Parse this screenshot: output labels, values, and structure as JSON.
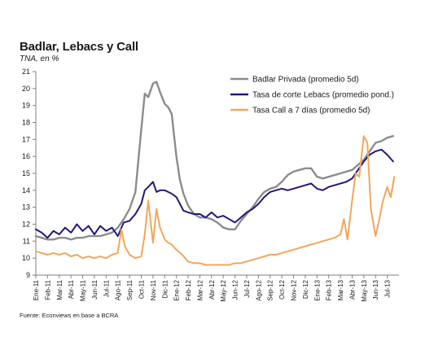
{
  "chart_data": {
    "type": "line",
    "title": "Badlar, Lebacs y Call",
    "subtitle": "TNA, en %",
    "source": "Fuente: Econviews en base a BCRA",
    "xlabel": "",
    "ylabel": "",
    "ylim": [
      9,
      21
    ],
    "yticks": [
      9,
      10,
      11,
      12,
      13,
      14,
      15,
      16,
      17,
      18,
      19,
      20,
      21
    ],
    "xlim": [
      0,
      31
    ],
    "xticks": [
      "Ene-11",
      "Feb-11",
      "Mar-11",
      "Abr-11",
      "May-11",
      "Jun-11",
      "Jul-11",
      "Ago-11",
      "Sep-11",
      "Oct-11",
      "Nov-11",
      "Dic-11",
      "Ene-12",
      "Feb-12",
      "Mar-12",
      "Abr-12",
      "May-12",
      "Jun-12",
      "Jul-12",
      "Ago-12",
      "Sep-12",
      "Oct-12",
      "Nov-12",
      "Dic-12",
      "Ene-13",
      "Feb-13",
      "Mar-13",
      "Abr-13",
      "May-13",
      "Jun-13",
      "Jul-13"
    ],
    "grid": false,
    "legend_position": "top-right",
    "series": [
      {
        "name": "Badlar Privada (promedio 5d)",
        "color": "#8c8c8c",
        "x": [
          0,
          0.5,
          1,
          1.5,
          2,
          2.5,
          3,
          3.5,
          4,
          4.5,
          5,
          5.5,
          6,
          6.5,
          7,
          7.5,
          8,
          8.5,
          9,
          9.3,
          9.6,
          10,
          10.3,
          10.6,
          11,
          11.3,
          11.6,
          12,
          12.3,
          12.6,
          13,
          13.5,
          14,
          14.5,
          15,
          15.5,
          16,
          16.5,
          17,
          17.5,
          18,
          18.5,
          19,
          19.5,
          20,
          20.5,
          21,
          21.5,
          22,
          22.5,
          23,
          23.5,
          24,
          24.5,
          25,
          25.5,
          26,
          26.5,
          27,
          27.5,
          28,
          28.5,
          29,
          29.5,
          30,
          30.5
        ],
        "values": [
          11.3,
          11.2,
          11.1,
          11.1,
          11.2,
          11.2,
          11.1,
          11.2,
          11.2,
          11.3,
          11.3,
          11.3,
          11.4,
          11.5,
          11.8,
          12.3,
          12.9,
          13.9,
          17.6,
          19.7,
          19.5,
          20.3,
          20.4,
          19.8,
          19.1,
          18.9,
          18.5,
          16.0,
          14.6,
          13.8,
          13.1,
          12.6,
          12.4,
          12.4,
          12.3,
          12.1,
          11.8,
          11.7,
          11.7,
          12.2,
          12.6,
          13.0,
          13.5,
          13.9,
          14.1,
          14.2,
          14.5,
          14.9,
          15.1,
          15.2,
          15.3,
          15.3,
          14.8,
          14.7,
          14.8,
          14.9,
          15.0,
          15.1,
          15.2,
          15.5,
          15.8,
          16.3,
          16.8,
          16.9,
          17.1,
          17.2
        ]
      },
      {
        "name": "Tasa de corte Lebacs (promedio pond.)",
        "color": "#1f1a7a",
        "x": [
          0,
          0.5,
          1,
          1.5,
          2,
          2.5,
          3,
          3.5,
          4,
          4.5,
          5,
          5.5,
          6,
          6.5,
          7,
          7.5,
          8,
          8.5,
          9,
          9.3,
          9.6,
          10,
          10.3,
          10.6,
          11,
          11.3,
          11.6,
          12,
          12.3,
          12.6,
          13,
          13.5,
          14,
          14.5,
          15,
          15.5,
          16,
          16.5,
          17,
          17.5,
          18,
          18.5,
          19,
          19.5,
          20,
          20.5,
          21,
          21.5,
          22,
          22.5,
          23,
          23.5,
          24,
          24.5,
          25,
          25.5,
          26,
          26.5,
          27,
          27.5,
          28,
          28.5,
          29,
          29.5,
          30,
          30.5
        ],
        "values": [
          11.7,
          11.5,
          11.2,
          11.6,
          11.4,
          11.8,
          11.5,
          12.0,
          11.6,
          11.9,
          11.4,
          11.9,
          11.6,
          11.8,
          11.3,
          12.1,
          12.2,
          12.6,
          13.2,
          14.0,
          14.2,
          14.5,
          13.9,
          14.0,
          14.0,
          13.9,
          13.8,
          13.6,
          13.2,
          12.8,
          12.7,
          12.6,
          12.6,
          12.4,
          12.7,
          12.4,
          12.5,
          12.3,
          12.1,
          12.4,
          12.7,
          12.9,
          13.2,
          13.6,
          13.9,
          14.0,
          14.1,
          14.0,
          14.1,
          14.2,
          14.3,
          14.4,
          14.1,
          14.0,
          14.2,
          14.3,
          14.4,
          14.5,
          14.7,
          15.2,
          15.7,
          16.1,
          16.3,
          16.4,
          16.1,
          15.7
        ]
      },
      {
        "name": "Tasa Call a 7 días (promedio 5d)",
        "color": "#f2a65a",
        "x": [
          0,
          0.5,
          1,
          1.5,
          2,
          2.5,
          3,
          3.5,
          4,
          4.5,
          5,
          5.5,
          6,
          6.5,
          7,
          7.3,
          7.6,
          8,
          8.5,
          9,
          9.3,
          9.6,
          10,
          10.3,
          10.6,
          11,
          11.3,
          11.6,
          12,
          12.5,
          13,
          13.5,
          14,
          14.5,
          15,
          15.5,
          16,
          16.5,
          17,
          17.5,
          18,
          18.5,
          19,
          19.5,
          20,
          20.5,
          21,
          21.5,
          22,
          22.5,
          23,
          23.5,
          24,
          24.5,
          25,
          25.5,
          26,
          26.3,
          26.6,
          27,
          27.3,
          27.6,
          28,
          28.3,
          28.6,
          29,
          29.3,
          29.6,
          30,
          30.3,
          30.6
        ],
        "values": [
          10.4,
          10.3,
          10.2,
          10.3,
          10.2,
          10.3,
          10.1,
          10.2,
          10.0,
          10.1,
          10.0,
          10.1,
          10.0,
          10.2,
          10.3,
          11.7,
          10.7,
          10.2,
          10.0,
          10.1,
          11.4,
          13.4,
          10.9,
          12.9,
          11.8,
          11.1,
          10.9,
          10.8,
          10.5,
          10.2,
          9.8,
          9.7,
          9.7,
          9.6,
          9.6,
          9.6,
          9.6,
          9.6,
          9.7,
          9.7,
          9.8,
          9.9,
          10.0,
          10.1,
          10.2,
          10.2,
          10.3,
          10.4,
          10.5,
          10.6,
          10.7,
          10.8,
          10.9,
          11.0,
          11.1,
          11.2,
          11.4,
          12.3,
          11.1,
          13.4,
          15.0,
          14.8,
          17.2,
          16.8,
          12.9,
          11.3,
          12.2,
          13.3,
          14.2,
          13.6,
          14.8
        ]
      }
    ]
  }
}
